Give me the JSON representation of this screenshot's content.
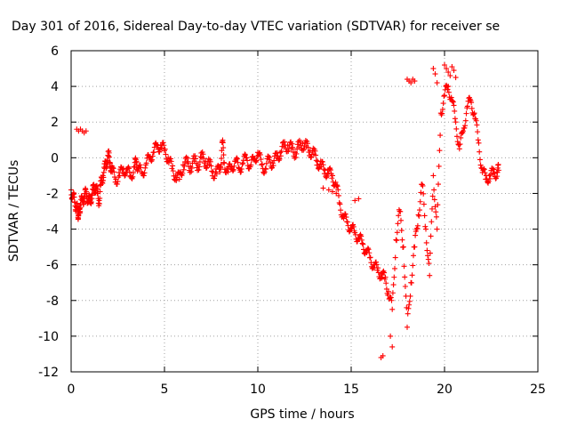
{
  "chart_data": {
    "type": "scatter",
    "title": "Day 301 of 2016, Sidereal Day-to-day VTEC variation (SDTVAR) for receiver se",
    "xlabel": "GPS time / hours",
    "ylabel": "SDTVAR / TECUs",
    "xlim": [
      0,
      25
    ],
    "ylim": [
      -12,
      6
    ],
    "xticks": [
      0,
      5,
      10,
      15,
      20,
      25
    ],
    "yticks": [
      -12,
      -10,
      -8,
      -6,
      -4,
      -2,
      0,
      2,
      4,
      6
    ],
    "grid": true,
    "marker": "+",
    "color": "#ff0000",
    "series": [
      {
        "x": [
          0.0,
          0.1,
          0.2,
          0.3,
          0.35,
          0.4,
          0.45,
          0.5,
          0.6,
          0.7,
          0.8,
          0.9,
          1.0,
          1.1,
          1.2,
          1.3,
          1.4,
          1.5,
          1.6,
          1.7,
          1.8,
          1.9,
          2.0,
          2.1,
          2.2,
          2.4,
          2.6,
          2.8,
          3.0,
          3.2,
          3.4,
          3.5,
          3.6,
          3.8,
          4.0,
          4.2,
          4.4,
          4.6,
          4.8,
          5.0,
          5.2,
          5.4,
          5.6,
          5.8,
          6.0,
          6.2,
          6.4,
          6.6,
          6.8,
          7.0,
          7.2,
          7.4,
          7.6,
          7.8,
          8.0,
          8.1,
          8.2,
          8.4,
          8.6,
          8.8,
          9.0,
          9.2,
          9.4,
          9.6,
          9.8,
          10.0,
          10.2,
          10.4,
          10.6,
          10.8,
          11.0,
          11.2,
          11.4,
          11.6,
          11.8,
          12.0,
          12.2,
          12.4,
          12.6,
          12.8,
          13.0,
          13.2,
          13.4,
          13.6,
          13.8,
          14.0,
          14.2,
          14.4,
          14.6,
          14.8,
          15.0,
          15.2,
          15.4,
          15.6,
          15.8,
          16.0,
          16.2,
          16.4,
          16.6,
          16.8,
          17.0,
          17.2,
          17.4,
          17.6,
          17.8,
          18.0,
          18.2,
          18.4,
          18.6,
          18.8,
          19.0,
          19.2,
          19.4,
          19.6,
          19.8,
          20.0,
          20.2,
          20.4,
          20.6,
          20.8,
          21.0,
          21.2,
          21.4,
          21.6,
          21.8,
          22.0,
          22.2,
          22.4,
          22.6,
          22.8,
          22.9
        ],
        "y": [
          -1.8,
          -2.2,
          -2.5,
          -2.8,
          -3.0,
          -3.2,
          -2.9,
          -2.6,
          -2.4,
          -2.2,
          -2.0,
          -2.3,
          -2.5,
          -2.1,
          -1.8,
          -1.6,
          -2.0,
          -2.4,
          -1.5,
          -1.0,
          -0.6,
          -0.2,
          0.1,
          -0.3,
          -0.8,
          -1.2,
          -1.0,
          -0.6,
          -0.8,
          -1.0,
          -0.5,
          -0.2,
          -0.6,
          -0.9,
          -0.4,
          0.0,
          0.3,
          0.6,
          0.7,
          0.4,
          0.0,
          -0.6,
          -1.0,
          -1.2,
          -0.4,
          -0.3,
          -0.5,
          -0.2,
          -0.4,
          0.0,
          -0.2,
          -0.4,
          -0.8,
          -0.9,
          -0.5,
          0.9,
          -0.3,
          -0.8,
          -0.5,
          -0.2,
          -0.6,
          -0.3,
          0.0,
          -0.5,
          -0.1,
          0.3,
          -0.4,
          -0.6,
          -0.1,
          -0.3,
          0.0,
          0.3,
          0.6,
          0.7,
          0.5,
          0.3,
          0.6,
          0.8,
          0.6,
          0.4,
          0.2,
          -0.2,
          -0.5,
          -0.7,
          -0.9,
          -1.0,
          -1.6,
          -2.6,
          -3.4,
          -3.6,
          -4.0,
          -4.2,
          -4.5,
          -4.8,
          -5.2,
          -5.6,
          -6.0,
          -6.3,
          -6.5,
          -6.8,
          -7.5,
          -8.5,
          -4.6,
          -3.0,
          -5.0,
          -9.5,
          -7.0,
          -5.0,
          -3.2,
          -1.5,
          -4.0,
          -6.6,
          -1.0,
          -4.0,
          2.5,
          3.5,
          4.0,
          3.2,
          2.0,
          0.5,
          1.5,
          2.8,
          3.2,
          2.5,
          1.0,
          -0.6,
          -1.2,
          -1.0,
          -0.9,
          -0.8,
          -0.7
        ],
        "extra_x": [
          0.3,
          0.4,
          0.5,
          0.6,
          0.7,
          0.8,
          16.6,
          16.7,
          17.1,
          17.2,
          18.0,
          18.1,
          18.2,
          18.3,
          18.4,
          19.4,
          19.5,
          19.6,
          20.0,
          20.1,
          20.2,
          20.3,
          20.4,
          20.5,
          20.6,
          13.5,
          13.8,
          14.0,
          14.2,
          15.2,
          15.4
        ],
        "extra_y": [
          1.6,
          1.5,
          1.6,
          1.5,
          1.4,
          1.5,
          -11.2,
          -11.1,
          -10.0,
          -10.6,
          4.4,
          4.3,
          4.2,
          4.4,
          4.3,
          5.0,
          4.7,
          4.2,
          5.2,
          5.0,
          4.8,
          4.6,
          5.1,
          4.9,
          4.5,
          -1.7,
          -1.8,
          -1.9,
          -2.0,
          -2.4,
          -2.3
        ]
      }
    ]
  }
}
